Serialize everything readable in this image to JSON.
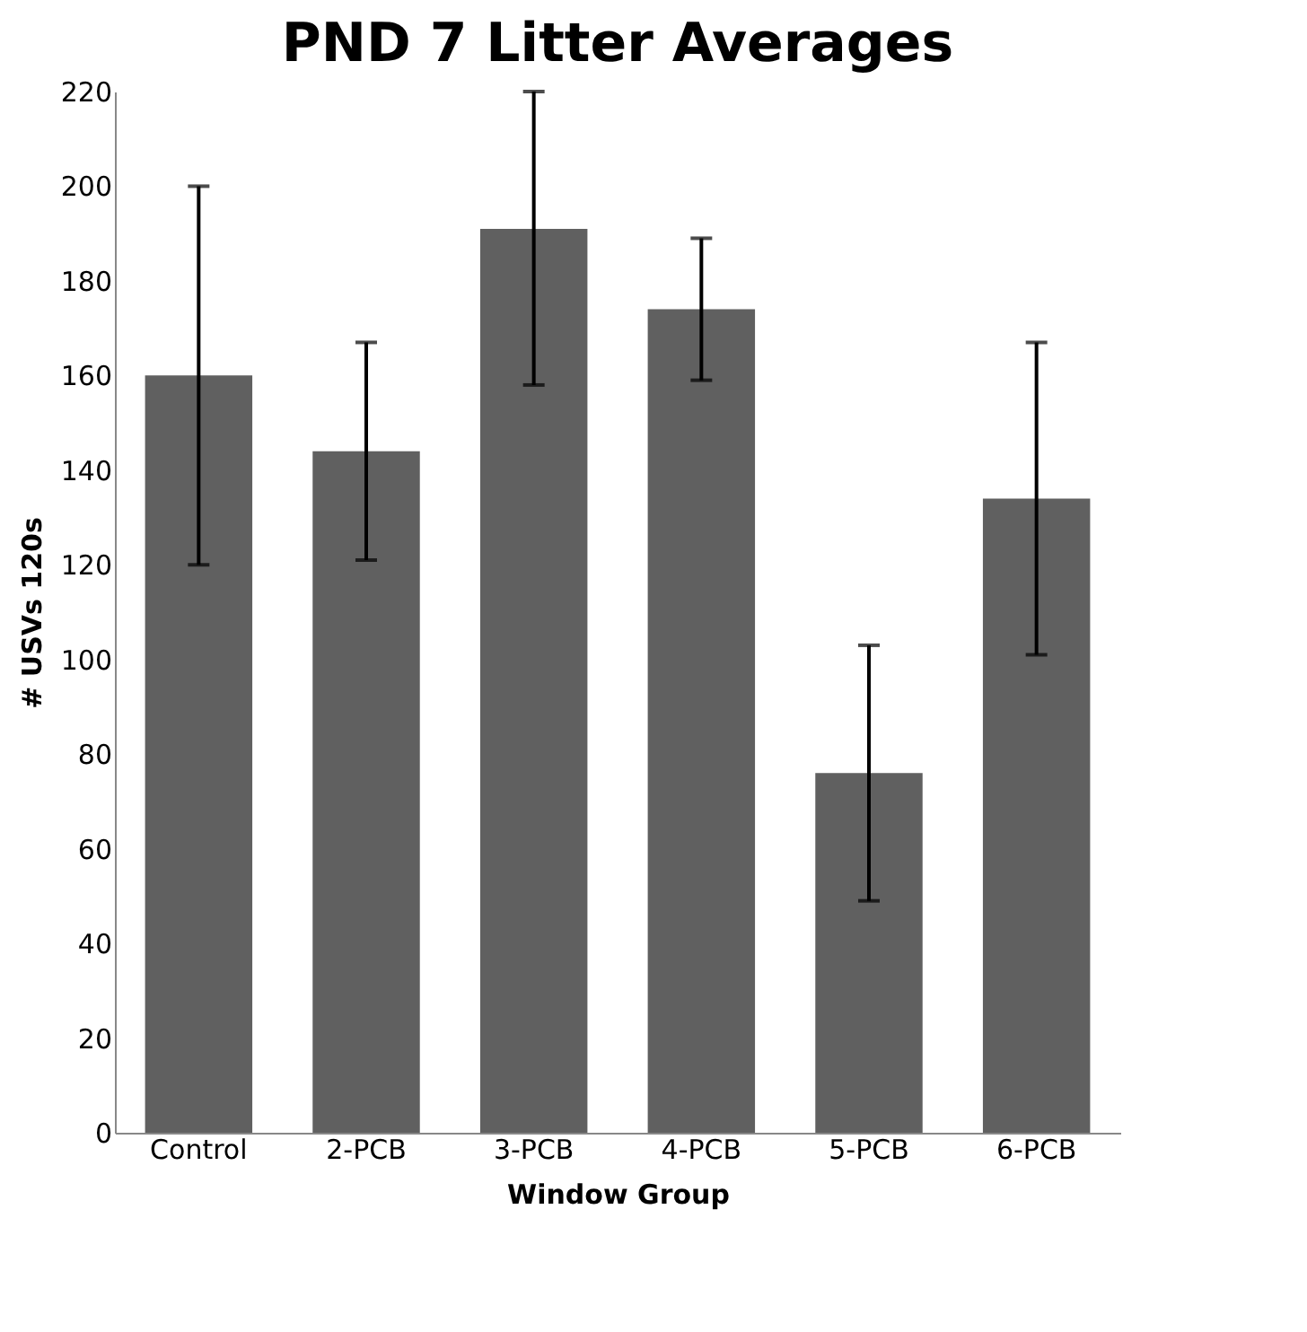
{
  "chart_data": {
    "type": "bar",
    "title": "PND 7 Litter Averages",
    "xlabel": "Window Group",
    "ylabel": "# USVs 120s",
    "categories": [
      "Control",
      "2-PCB",
      "3-PCB",
      "4-PCB",
      "5-PCB",
      "6-PCB"
    ],
    "values": [
      160,
      144,
      191,
      174,
      76,
      134
    ],
    "errors": [
      40,
      23,
      [
        158,
        220
      ],
      15,
      27,
      33
    ],
    "color": "#606060",
    "ylim": [
      0,
      220
    ],
    "yticks": [
      0,
      20,
      40,
      60,
      80,
      100,
      120,
      140,
      160,
      180,
      200,
      220
    ],
    "grid": false
  }
}
